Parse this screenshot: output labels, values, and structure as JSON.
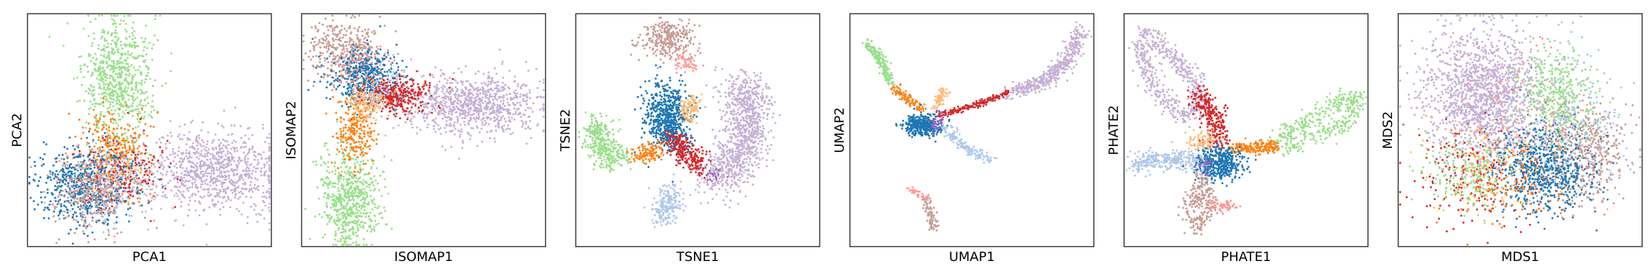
{
  "figure": {
    "palette": {
      "blue": "#1f77b4",
      "light_blue": "#aec7e8",
      "orange": "#ff7f0e",
      "light_orange": "#ffbb78",
      "light_green": "#98df8a",
      "red": "#d62728",
      "pink": "#ff9896",
      "lavender": "#c5b0d5",
      "brown": "#c49c94",
      "purple": "#9467bd"
    }
  },
  "chart_data": [
    {
      "type": "scatter",
      "xlabel": "PCA1",
      "ylabel": "PCA2",
      "xlim": [
        0,
        10
      ],
      "ylim": [
        0,
        10
      ],
      "xticks": false,
      "yticks": false,
      "clusters": [
        {
          "color": "#98df8a",
          "shape": "blob",
          "cx": 3.7,
          "cy": 7.1,
          "sx": 0.7,
          "sy": 1.3,
          "n": 700
        },
        {
          "color": "#c5b0d5",
          "shape": "blob",
          "cx": 7.7,
          "cy": 3.3,
          "sx": 1.3,
          "sy": 0.9,
          "n": 900
        },
        {
          "color": "#ff7f0e",
          "shape": "blob",
          "cx": 3.6,
          "cy": 4.1,
          "sx": 0.7,
          "sy": 0.9,
          "n": 300
        },
        {
          "color": "#1f77b4",
          "shape": "blob",
          "cx": 2.5,
          "cy": 2.6,
          "sx": 1.0,
          "sy": 0.8,
          "n": 650
        },
        {
          "color": "#c49c94",
          "shape": "blob",
          "cx": 2.6,
          "cy": 2.3,
          "sx": 0.8,
          "sy": 0.8,
          "n": 250
        },
        {
          "color": "#d62728",
          "shape": "blob",
          "cx": 4.0,
          "cy": 3.2,
          "sx": 0.8,
          "sy": 0.8,
          "n": 150
        },
        {
          "color": "#aec7e8",
          "shape": "blob",
          "cx": 3.5,
          "cy": 2.6,
          "sx": 1.2,
          "sy": 0.9,
          "n": 150
        },
        {
          "color": "#ffbb78",
          "shape": "blob",
          "cx": 3.3,
          "cy": 2.9,
          "sx": 0.7,
          "sy": 0.7,
          "n": 80
        },
        {
          "color": "#ff9896",
          "shape": "blob",
          "cx": 2.8,
          "cy": 2.4,
          "sx": 0.7,
          "sy": 0.7,
          "n": 80
        },
        {
          "color": "#9467bd",
          "shape": "blob",
          "cx": 3.4,
          "cy": 3.0,
          "sx": 0.9,
          "sy": 0.9,
          "n": 30
        }
      ]
    },
    {
      "type": "scatter",
      "xlabel": "ISOMAP1",
      "ylabel": "ISOMAP2",
      "xlim": [
        0,
        10
      ],
      "ylim": [
        0,
        10
      ],
      "xticks": false,
      "yticks": false,
      "clusters": [
        {
          "color": "#98df8a",
          "shape": "blob",
          "cx": 2.0,
          "cy": 2.1,
          "sx": 0.6,
          "sy": 1.1,
          "n": 650
        },
        {
          "color": "#c5b0d5",
          "shape": "blob",
          "cx": 7.0,
          "cy": 6.1,
          "sx": 1.4,
          "sy": 0.65,
          "n": 900
        },
        {
          "color": "#c49c94",
          "shape": "blob",
          "cx": 1.8,
          "cy": 8.4,
          "sx": 0.8,
          "sy": 0.7,
          "n": 400
        },
        {
          "color": "#1f77b4",
          "shape": "blob",
          "cx": 2.6,
          "cy": 7.3,
          "sx": 0.7,
          "sy": 0.6,
          "n": 450
        },
        {
          "color": "#d62728",
          "shape": "blob",
          "cx": 3.9,
          "cy": 6.5,
          "sx": 0.7,
          "sy": 0.4,
          "n": 350
        },
        {
          "color": "#ff7f0e",
          "shape": "blob",
          "cx": 2.1,
          "cy": 5.0,
          "sx": 0.45,
          "sy": 0.8,
          "n": 250
        },
        {
          "color": "#ffbb78",
          "shape": "blob",
          "cx": 2.7,
          "cy": 6.2,
          "sx": 0.4,
          "sy": 0.4,
          "n": 150
        },
        {
          "color": "#aec7e8",
          "shape": "blob",
          "cx": 3.3,
          "cy": 6.7,
          "sx": 0.6,
          "sy": 0.5,
          "n": 80
        },
        {
          "color": "#ff9896",
          "shape": "blob",
          "cx": 2.4,
          "cy": 7.7,
          "sx": 0.5,
          "sy": 0.5,
          "n": 60
        }
      ]
    },
    {
      "type": "scatter",
      "xlabel": "TSNE1",
      "ylabel": "TSNE2",
      "xlim": [
        0,
        10
      ],
      "ylim": [
        0,
        10
      ],
      "xticks": false,
      "yticks": false,
      "clusters": [
        {
          "color": "#c49c94",
          "shape": "blob",
          "cx": 3.8,
          "cy": 8.9,
          "sx": 0.55,
          "sy": 0.4,
          "n": 300
        },
        {
          "color": "#ff9896",
          "shape": "path",
          "pts": [
            [
              4.3,
              8.2
            ],
            [
              4.7,
              7.8
            ]
          ],
          "w": 0.2,
          "n": 60
        },
        {
          "color": "#1f77b4",
          "shape": "blob",
          "cx": 3.7,
          "cy": 5.7,
          "sx": 0.45,
          "sy": 0.65,
          "n": 550
        },
        {
          "color": "#1f77b4",
          "shape": "path",
          "pts": [
            [
              3.7,
              5.0
            ],
            [
              4.4,
              4.3
            ]
          ],
          "w": 0.25,
          "n": 120
        },
        {
          "color": "#ffbb78",
          "shape": "path",
          "pts": [
            [
              4.8,
              6.3
            ],
            [
              4.6,
              5.5
            ]
          ],
          "w": 0.2,
          "n": 100
        },
        {
          "color": "#98df8a",
          "shape": "path",
          "pts": [
            [
              1.0,
              5.3
            ],
            [
              0.8,
              4.6
            ],
            [
              1.2,
              4.0
            ],
            [
              1.9,
              3.8
            ]
          ],
          "w": 0.3,
          "n": 350
        },
        {
          "color": "#ff7f0e",
          "shape": "path",
          "pts": [
            [
              2.4,
              3.9
            ],
            [
              3.4,
              4.1
            ]
          ],
          "w": 0.2,
          "n": 120
        },
        {
          "color": "#d62728",
          "shape": "path",
          "pts": [
            [
              3.9,
              4.6
            ],
            [
              4.8,
              3.7
            ],
            [
              5.2,
              3.4
            ]
          ],
          "w": 0.25,
          "n": 250
        },
        {
          "color": "#c5b0d5",
          "shape": "path",
          "pts": [
            [
              6.9,
              7.0
            ],
            [
              7.1,
              5.8
            ],
            [
              6.9,
              4.4
            ],
            [
              6.2,
              3.1
            ],
            [
              5.6,
              3.0
            ]
          ],
          "w": 0.5,
          "n": 1000
        },
        {
          "color": "#aec7e8",
          "shape": "path",
          "pts": [
            [
              3.9,
              2.4
            ],
            [
              3.6,
              1.2
            ]
          ],
          "w": 0.3,
          "n": 200
        },
        {
          "color": "#9467bd",
          "shape": "blob",
          "cx": 5.6,
          "cy": 3.1,
          "sx": 0.2,
          "sy": 0.2,
          "n": 20
        }
      ]
    },
    {
      "type": "scatter",
      "xlabel": "UMAP1",
      "ylabel": "UMAP2",
      "xlim": [
        0,
        10
      ],
      "ylim": [
        0,
        10
      ],
      "xticks": false,
      "yticks": false,
      "clusters": [
        {
          "color": "#98df8a",
          "shape": "path",
          "pts": [
            [
              0.7,
              8.8
            ],
            [
              1.3,
              7.9
            ],
            [
              1.7,
              7.0
            ]
          ],
          "w": 0.12,
          "n": 180
        },
        {
          "color": "#ff7f0e",
          "shape": "path",
          "pts": [
            [
              1.8,
              6.8
            ],
            [
              2.9,
              5.9
            ]
          ],
          "w": 0.1,
          "n": 100
        },
        {
          "color": "#c5b0d5",
          "shape": "path",
          "pts": [
            [
              6.5,
              6.6
            ],
            [
              7.8,
              7.0
            ],
            [
              8.7,
              7.7
            ],
            [
              9.2,
              8.6
            ],
            [
              9.5,
              9.3
            ]
          ],
          "w": 0.18,
          "n": 450
        },
        {
          "color": "#d62728",
          "shape": "path",
          "pts": [
            [
              3.6,
              5.6
            ],
            [
              5.2,
              6.1
            ],
            [
              6.5,
              6.6
            ]
          ],
          "w": 0.07,
          "n": 180
        },
        {
          "color": "#ffbb78",
          "shape": "path",
          "pts": [
            [
              3.9,
              6.8
            ],
            [
              3.5,
              5.9
            ]
          ],
          "w": 0.1,
          "n": 70
        },
        {
          "color": "#1f77b4",
          "shape": "blob",
          "cx": 3.0,
          "cy": 5.2,
          "sx": 0.35,
          "sy": 0.22,
          "n": 420
        },
        {
          "color": "#9467bd",
          "shape": "blob",
          "cx": 3.5,
          "cy": 5.3,
          "sx": 0.2,
          "sy": 0.2,
          "n": 40
        },
        {
          "color": "#aec7e8",
          "shape": "path",
          "pts": [
            [
              3.8,
              5.2
            ],
            [
              4.6,
              4.3
            ],
            [
              5.8,
              3.7
            ]
          ],
          "w": 0.12,
          "n": 150
        },
        {
          "color": "#ff9896",
          "shape": "path",
          "pts": [
            [
              2.4,
              2.5
            ],
            [
              3.2,
              2.0
            ]
          ],
          "w": 0.06,
          "n": 40
        },
        {
          "color": "#c49c94",
          "shape": "path",
          "pts": [
            [
              3.1,
              2.1
            ],
            [
              3.5,
              0.7
            ]
          ],
          "w": 0.12,
          "n": 80
        }
      ]
    },
    {
      "type": "scatter",
      "xlabel": "PHATE1",
      "ylabel": "PHATE2",
      "xlim": [
        0,
        10
      ],
      "ylim": [
        0,
        10
      ],
      "xticks": false,
      "yticks": false,
      "clusters": [
        {
          "color": "#c5b0d5",
          "shape": "path",
          "pts": [
            [
              0.8,
              9.3
            ],
            [
              2.0,
              8.2
            ],
            [
              3.0,
              7.0
            ],
            [
              3.2,
              6.0
            ],
            [
              2.4,
              5.6
            ],
            [
              1.2,
              6.8
            ],
            [
              0.6,
              9.0
            ]
          ],
          "w": 0.22,
          "n": 550
        },
        {
          "color": "#d62728",
          "shape": "path",
          "pts": [
            [
              3.0,
              6.6
            ],
            [
              3.7,
              5.6
            ],
            [
              3.9,
              4.3
            ]
          ],
          "w": 0.25,
          "n": 280
        },
        {
          "color": "#98df8a",
          "shape": "path",
          "pts": [
            [
              6.0,
              4.4
            ],
            [
              7.8,
              5.6
            ],
            [
              9.0,
              6.4
            ],
            [
              9.6,
              6.5
            ],
            [
              9.2,
              5.3
            ],
            [
              8.0,
              4.8
            ],
            [
              6.6,
              4.2
            ]
          ],
          "w": 0.2,
          "n": 400
        },
        {
          "color": "#ff7f0e",
          "shape": "path",
          "pts": [
            [
              4.4,
              4.2
            ],
            [
              6.3,
              4.3
            ]
          ],
          "w": 0.13,
          "n": 180
        },
        {
          "color": "#ffbb78",
          "shape": "blob",
          "cx": 3.2,
          "cy": 4.5,
          "sx": 0.3,
          "sy": 0.2,
          "n": 80
        },
        {
          "color": "#aec7e8",
          "shape": "path",
          "pts": [
            [
              0.4,
              3.5
            ],
            [
              1.5,
              3.8
            ],
            [
              2.8,
              3.7
            ],
            [
              3.5,
              3.3
            ]
          ],
          "w": 0.22,
          "n": 350
        },
        {
          "color": "#1f77b4",
          "shape": "blob",
          "cx": 3.9,
          "cy": 3.6,
          "sx": 0.45,
          "sy": 0.35,
          "n": 380
        },
        {
          "color": "#9467bd",
          "shape": "blob",
          "cx": 3.4,
          "cy": 3.5,
          "sx": 0.2,
          "sy": 0.2,
          "n": 25
        },
        {
          "color": "#c49c94",
          "shape": "path",
          "pts": [
            [
              3.2,
              2.8
            ],
            [
              2.6,
              1.5
            ],
            [
              3.0,
              0.8
            ],
            [
              3.5,
              1.6
            ],
            [
              3.3,
              2.8
            ]
          ],
          "w": 0.2,
          "n": 240
        },
        {
          "color": "#ff9896",
          "shape": "path",
          "pts": [
            [
              3.6,
              1.8
            ],
            [
              4.5,
              1.7
            ]
          ],
          "w": 0.15,
          "n": 60
        }
      ]
    },
    {
      "type": "scatter",
      "xlabel": "MDS1",
      "ylabel": "MDS2",
      "xlim": [
        0,
        10
      ],
      "ylim": [
        0,
        10
      ],
      "xticks": false,
      "yticks": false,
      "clusters": [
        {
          "color": "#c5b0d5",
          "shape": "blob",
          "cx": 3.6,
          "cy": 6.5,
          "sx": 1.3,
          "sy": 1.4,
          "n": 1500
        },
        {
          "color": "#98df8a",
          "shape": "blob",
          "cx": 6.5,
          "cy": 6.4,
          "sx": 0.8,
          "sy": 1.1,
          "n": 450
        },
        {
          "color": "#c49c94",
          "shape": "blob",
          "cx": 7.7,
          "cy": 4.1,
          "sx": 0.8,
          "sy": 1.1,
          "n": 450
        },
        {
          "color": "#1f77b4",
          "shape": "blob",
          "cx": 6.0,
          "cy": 3.2,
          "sx": 1.0,
          "sy": 0.9,
          "n": 700
        },
        {
          "color": "#d62728",
          "shape": "blob",
          "cx": 3.0,
          "cy": 3.0,
          "sx": 1.2,
          "sy": 1.0,
          "n": 180
        },
        {
          "color": "#ff7f0e",
          "shape": "blob",
          "cx": 4.4,
          "cy": 2.8,
          "sx": 1.2,
          "sy": 0.9,
          "n": 180
        },
        {
          "color": "#98df8a",
          "shape": "blob",
          "cx": 2.8,
          "cy": 3.2,
          "sx": 1.0,
          "sy": 0.8,
          "n": 200
        },
        {
          "color": "#ff9896",
          "shape": "blob",
          "cx": 5.5,
          "cy": 5.5,
          "sx": 1.6,
          "sy": 1.5,
          "n": 120
        },
        {
          "color": "#ffbb78",
          "shape": "blob",
          "cx": 4.0,
          "cy": 4.0,
          "sx": 1.5,
          "sy": 1.3,
          "n": 120
        },
        {
          "color": "#aec7e8",
          "shape": "blob",
          "cx": 7.0,
          "cy": 5.2,
          "sx": 1.2,
          "sy": 1.3,
          "n": 200
        },
        {
          "color": "#9467bd",
          "shape": "blob",
          "cx": 5.0,
          "cy": 4.5,
          "sx": 1.6,
          "sy": 1.5,
          "n": 40
        }
      ]
    }
  ]
}
